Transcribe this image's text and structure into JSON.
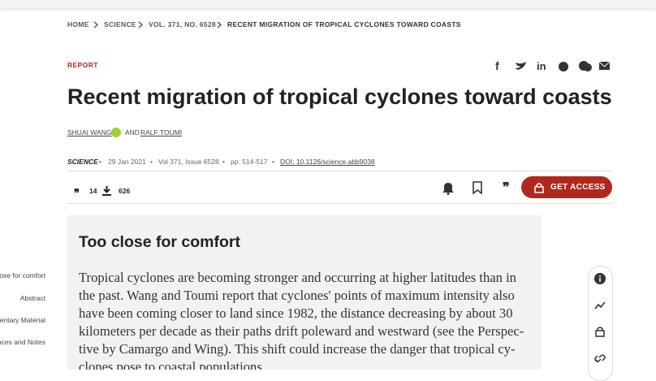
{
  "breadcrumb": [
    "HOME",
    "SCIENCE",
    "VOL. 371, NO. 6528",
    "RECENT MIGRATION OF TROPICAL CYCLONES TOWARD COASTS"
  ],
  "article": {
    "section": "REPORT",
    "title": "Recent migration of tropical cyclones toward coasts",
    "authors": [
      "SHUAI WANG",
      "AND",
      "RALF TOUMI"
    ],
    "journal": "SCIENCE",
    "date": "29 Jan 2021",
    "issue": "Vol 371, Issue 6528",
    "pages": "pp. 514-517",
    "doi": "DOI: 10.1126/science.abb9038"
  },
  "metrics": {
    "citations": 14,
    "downloads": 626
  },
  "actions": {
    "get_access": "GET ACCESS"
  },
  "sidebar_nav": [
    "ose for comfort",
    "Abstract",
    "entary Material",
    "ences and Notes"
  ],
  "summary": {
    "heading": "Too close for comfort",
    "lines": [
      "Tropical cyclones are becoming stronger and occurring at higher latitudes than in",
      "the past. Wang and Toumi report that cyclones' points of maximum intensity also",
      "have been coming closer to land since 1982, the distance decreasing by about 30",
      "kilometers per decade as their paths drift poleward and westward (see the Perspec-",
      "tive by Camargo and Wing). This shift could increase the danger that tropical cy-",
      "clones pose to coastal populations."
    ]
  }
}
